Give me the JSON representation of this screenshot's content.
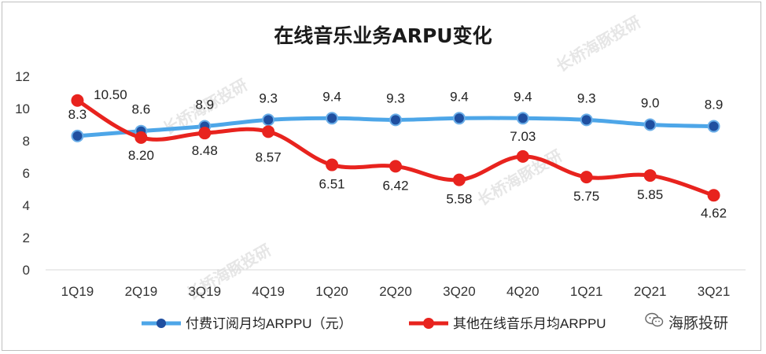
{
  "chart_data": {
    "type": "line",
    "title": "在线音乐业务ARPU变化",
    "categories": [
      "1Q19",
      "2Q19",
      "3Q19",
      "4Q19",
      "1Q20",
      "2Q20",
      "3Q20",
      "4Q20",
      "1Q21",
      "2Q21",
      "3Q21"
    ],
    "ylim": [
      0,
      12
    ],
    "yticks": [
      "0",
      "2",
      "4",
      "6",
      "8",
      "10",
      "12"
    ],
    "grid": false,
    "legend_position": "bottom",
    "series": [
      {
        "name": "付费订阅月均ARPPU（元）",
        "color": "#4da6e8",
        "marker_color": "#1f4fa0",
        "values": [
          8.3,
          8.6,
          8.9,
          9.3,
          9.4,
          9.3,
          9.4,
          9.4,
          9.3,
          9.0,
          8.9
        ],
        "labels": [
          "8.3",
          "8.6",
          "8.9",
          "9.3",
          "9.4",
          "9.3",
          "9.4",
          "9.4",
          "9.3",
          "9.0",
          "8.9"
        ]
      },
      {
        "name": "其他在线音乐月均ARPPU",
        "color": "#e8231e",
        "marker_color": "#e8231e",
        "values": [
          10.5,
          8.2,
          8.48,
          8.57,
          6.51,
          6.42,
          5.58,
          7.03,
          5.75,
          5.85,
          4.62
        ],
        "labels": [
          "10.50",
          "8.20",
          "8.48",
          "8.57",
          "6.51",
          "6.42",
          "5.58",
          "7.03",
          "5.75",
          "5.85",
          "4.62"
        ]
      }
    ]
  },
  "watermark": "长桥海豚投研",
  "brand": {
    "name": "海豚投研",
    "icon": "wechat-icon"
  }
}
